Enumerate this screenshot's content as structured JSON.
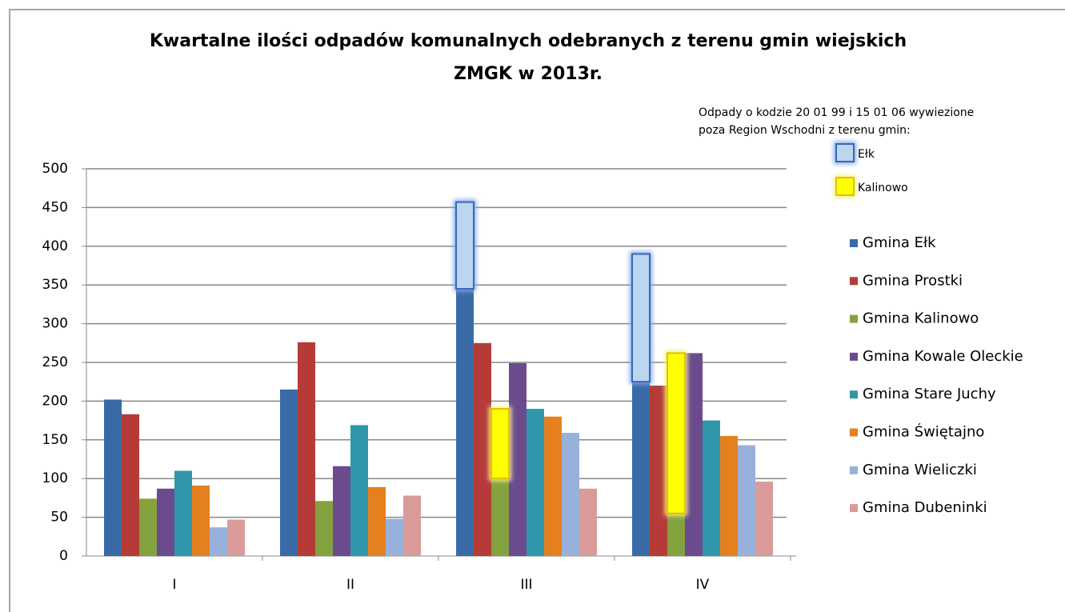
{
  "chart_data": {
    "type": "bar",
    "title": [
      "Kwartalne ilości odpadów komunalnych  odebranych z terenu gmin wiejskich",
      "ZMGK w 2013r."
    ],
    "categories": [
      "I",
      "II",
      "III",
      "IV"
    ],
    "ylim": [
      0,
      500
    ],
    "yticks": [
      0,
      50,
      100,
      150,
      200,
      250,
      300,
      350,
      400,
      450,
      500
    ],
    "grid": true,
    "legend": "right",
    "series": [
      {
        "name": "Gmina Ełk",
        "color": "#3a6aa6",
        "values": [
          202,
          215,
          345,
          225
        ],
        "overlay": [
          null,
          null,
          112,
          165
        ]
      },
      {
        "name": "Gmina Prostki",
        "color": "#b53b38",
        "values": [
          183,
          276,
          275,
          220
        ]
      },
      {
        "name": "Gmina Kalinowo",
        "color": "#84a23e",
        "values": [
          74,
          71,
          100,
          55
        ],
        "overlay": [
          null,
          null,
          90,
          207
        ]
      },
      {
        "name": "Gmina Kowale Oleckie",
        "color": "#6b4b8e",
        "values": [
          87,
          116,
          249,
          262
        ]
      },
      {
        "name": "Gmina Stare Juchy",
        "color": "#2f97a9",
        "values": [
          110,
          169,
          190,
          175
        ]
      },
      {
        "name": "Gmina Świętajno",
        "color": "#e5801f",
        "values": [
          91,
          89,
          180,
          155
        ]
      },
      {
        "name": "Gmina Wieliczki",
        "color": "#97b1db",
        "values": [
          37,
          48,
          159,
          143
        ]
      },
      {
        "name": "Gmina Dubeninki",
        "color": "#d99b9a",
        "values": [
          47,
          78,
          87,
          96
        ]
      }
    ],
    "overlay_caption": [
      "Odpady o kodzie 20 01 99 i 15 01 06 wywiezione",
      "poza Region Wschodni z terenu gmin:"
    ],
    "overlay_legend": [
      {
        "name": "Ełk",
        "color": "#bcd6ee",
        "border": "#3b66b8",
        "glow": "#7fa8ec"
      },
      {
        "name": "Kalinowo",
        "color": "#ffff00",
        "border": "#e0c000",
        "glow": "#f4f08a"
      }
    ]
  }
}
